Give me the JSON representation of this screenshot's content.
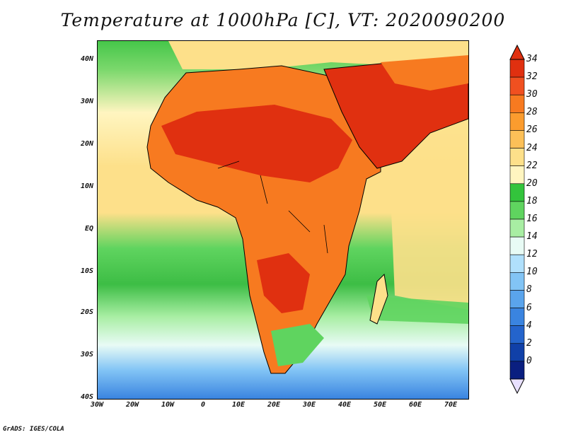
{
  "title": "Temperature at 1000hPa [C], VT: 2020090200",
  "credit": "GrADS: IGES/COLA",
  "map": {
    "lon_range": [
      -30,
      75
    ],
    "lat_range": [
      -40,
      45
    ],
    "x_ticks": [
      "30W",
      "20W",
      "10W",
      "0",
      "10E",
      "20E",
      "30E",
      "40E",
      "50E",
      "60E",
      "70E"
    ],
    "y_ticks": [
      "40N",
      "30N",
      "20N",
      "10N",
      "EQ",
      "10S",
      "20S",
      "30S",
      "40S"
    ]
  },
  "colorbar": {
    "labels": [
      "34",
      "32",
      "30",
      "28",
      "26",
      "24",
      "22",
      "20",
      "18",
      "16",
      "14",
      "12",
      "10",
      "8",
      "6",
      "4",
      "2",
      "0"
    ],
    "colors": [
      "#e03010",
      "#f05020",
      "#f77a20",
      "#fb9c2e",
      "#fcc058",
      "#fde08a",
      "#fff5c0",
      "#33c43c",
      "#5fd45f",
      "#a8eea3",
      "#e8fbf5",
      "#b0e0fc",
      "#82c4f5",
      "#5aa4ec",
      "#3a84e0",
      "#2464cc",
      "#1040a8",
      "#0a1f80"
    ]
  }
}
